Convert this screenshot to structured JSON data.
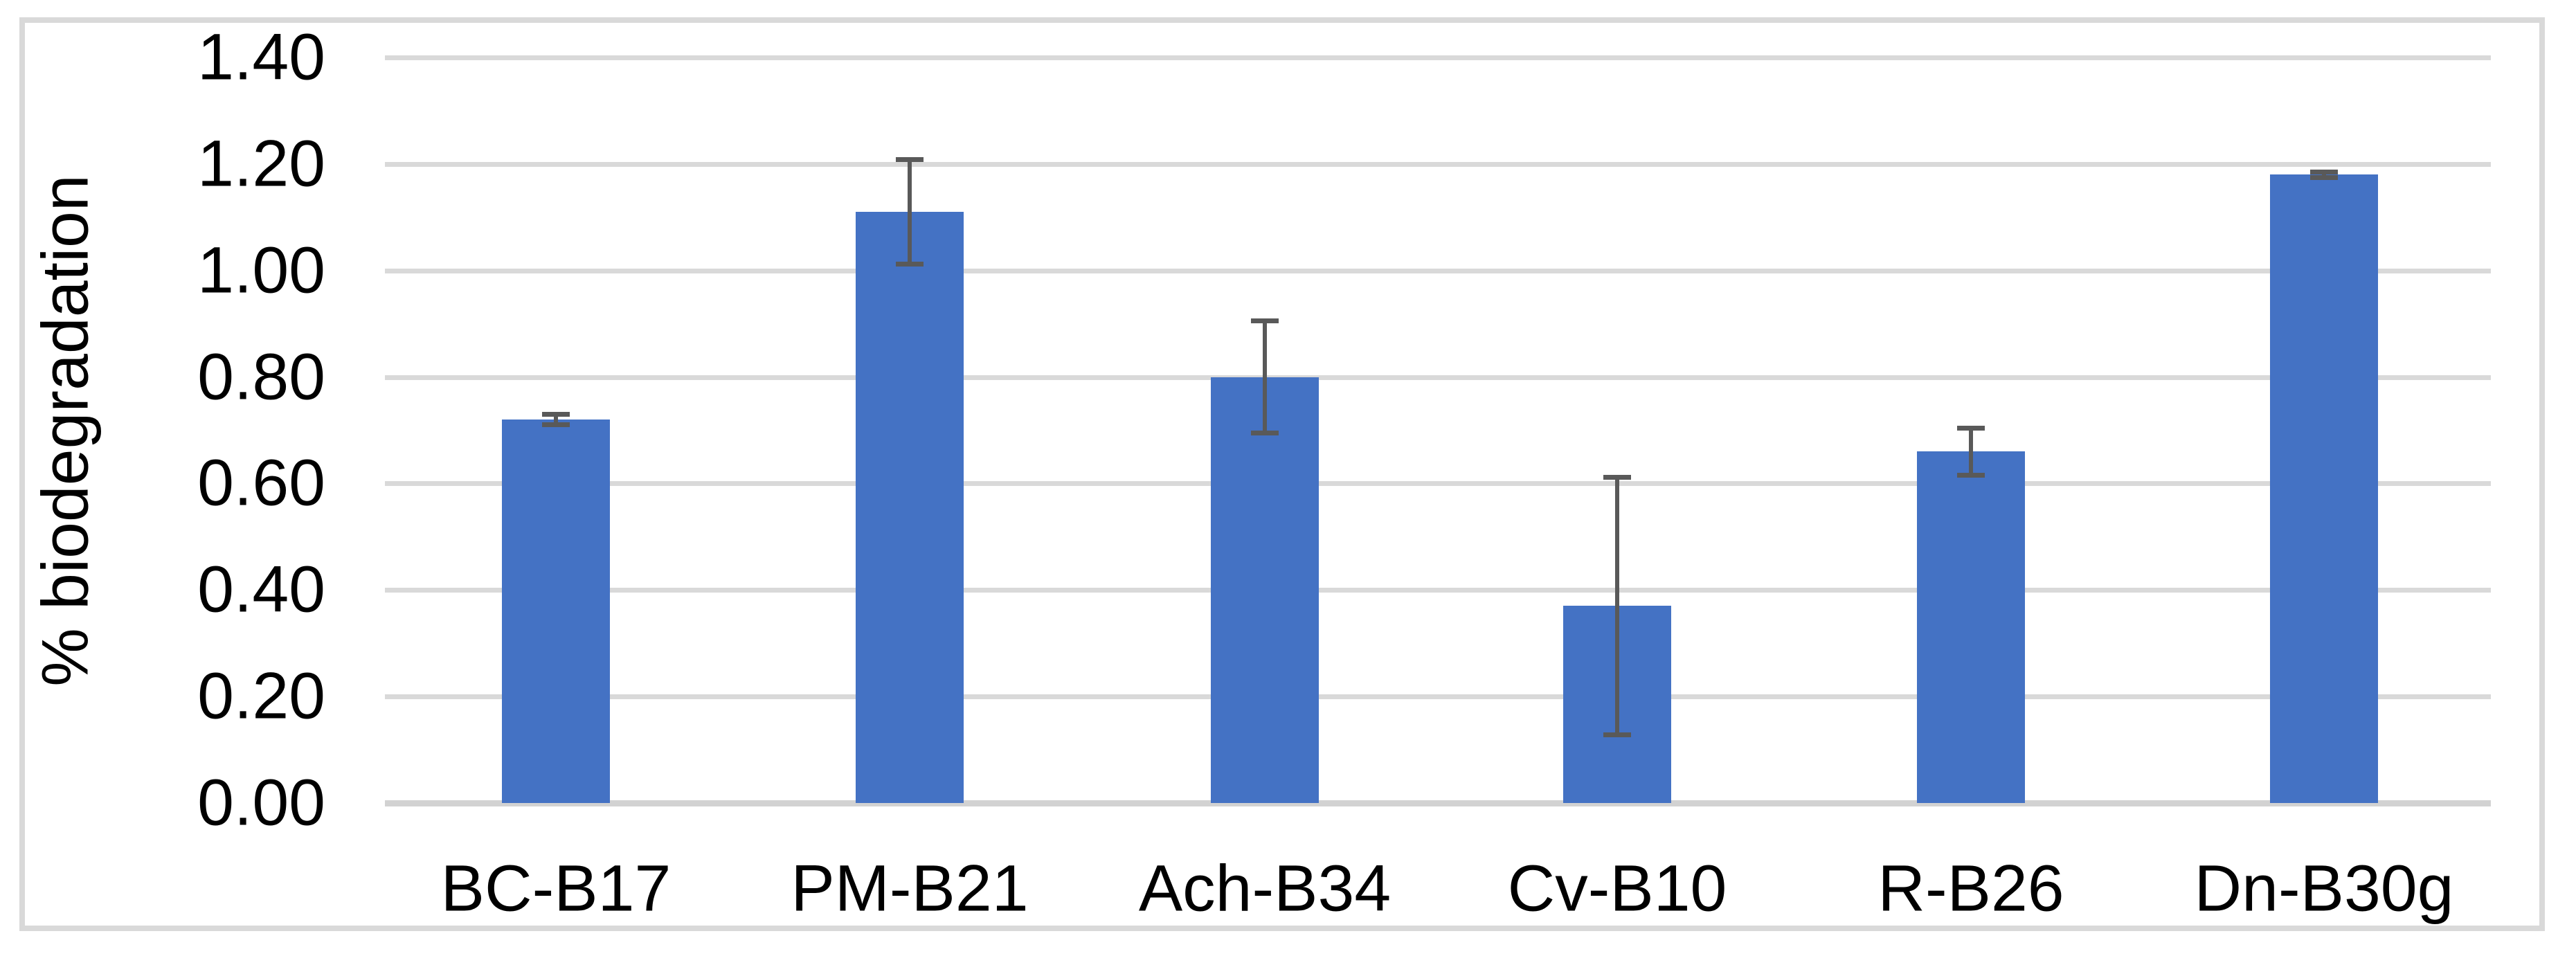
{
  "chart_data": {
    "type": "bar",
    "title": "",
    "ylabel": "% biodegradation",
    "xlabel": "",
    "categories": [
      "BC-B17",
      "PM-B21",
      "Ach-B34",
      "Cv-B10",
      "R-B26",
      "Dn-B30g"
    ],
    "series": [
      {
        "name": "% biodegradation",
        "values": [
          0.72,
          1.11,
          0.8,
          0.37,
          0.66,
          1.18
        ],
        "error_bars": [
          0.01,
          0.098,
          0.105,
          0.242,
          0.044,
          0.005
        ]
      }
    ],
    "ylim": [
      0.0,
      1.4
    ],
    "y_tick_step": 0.2,
    "y_tick_labels": [
      "0.00",
      "0.20",
      "0.40",
      "0.60",
      "0.80",
      "1.00",
      "1.20",
      "1.40"
    ],
    "y_tick_values": [
      0.0,
      0.2,
      0.4,
      0.6,
      0.8,
      1.0,
      1.2,
      1.4
    ],
    "grid": "horizontal",
    "legend_position": "none",
    "colors": {
      "bar": "#4472C4",
      "error_bar": "#595959",
      "gridline": "#D9D9D9",
      "axis_line": "#D2D2D2",
      "chart_border": "#D9D9D9",
      "text": "#000000",
      "background": "#FFFFFF"
    }
  }
}
